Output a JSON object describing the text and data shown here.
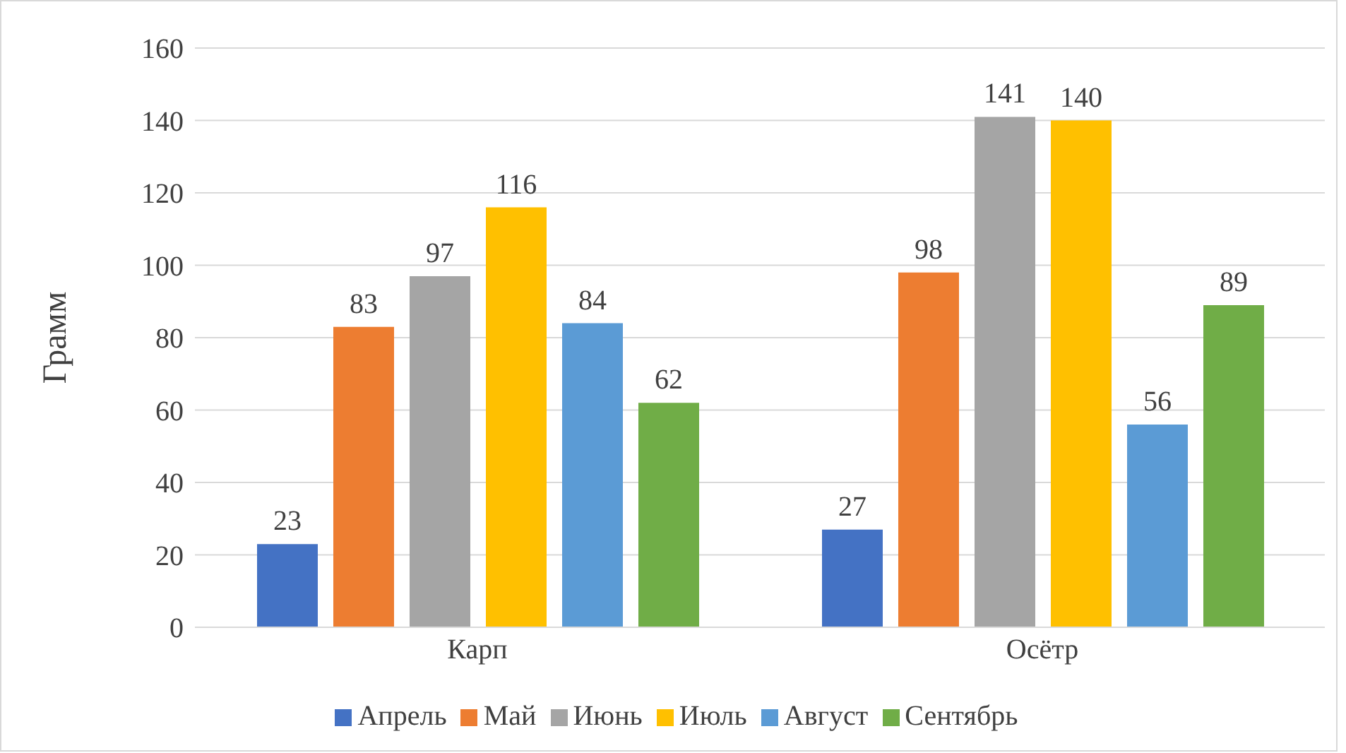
{
  "chart_data": {
    "type": "bar",
    "ylabel": "Грамм",
    "categories": [
      "Карп",
      "Осётр"
    ],
    "series": [
      {
        "name": "Апрель",
        "color": "#4472c4",
        "values": [
          23,
          27
        ]
      },
      {
        "name": "Май",
        "color": "#ed7d31",
        "values": [
          83,
          98
        ]
      },
      {
        "name": "Июнь",
        "color": "#a5a5a5",
        "values": [
          97,
          141
        ]
      },
      {
        "name": "Июль",
        "color": "#ffc000",
        "values": [
          116,
          140
        ]
      },
      {
        "name": "Август",
        "color": "#5b9bd5",
        "values": [
          84,
          56
        ]
      },
      {
        "name": "Сентябрь",
        "color": "#70ad47",
        "values": [
          62,
          89
        ]
      }
    ],
    "ylim": [
      0,
      160
    ],
    "yticks": [
      0,
      20,
      40,
      60,
      80,
      100,
      120,
      140,
      160
    ],
    "grid": "y",
    "legend": "bottom",
    "data_labels": true
  }
}
